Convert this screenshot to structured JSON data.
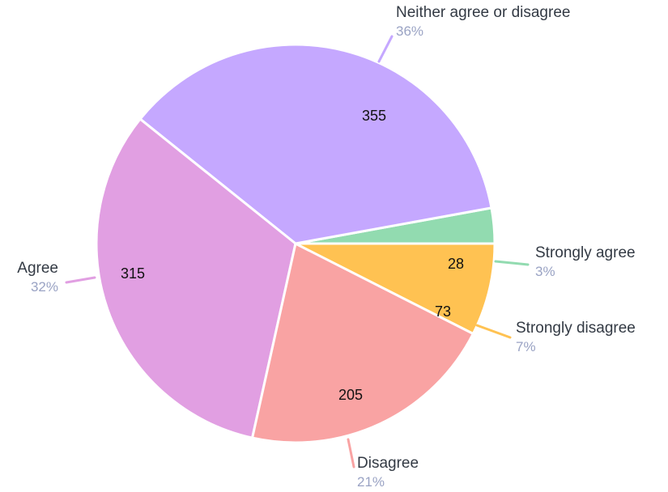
{
  "chart_data": {
    "type": "pie",
    "slices": [
      {
        "label": "Strongly agree",
        "value": 28,
        "percent": "3%",
        "color": "#92dbb0"
      },
      {
        "label": "Neither agree or disagree",
        "value": 355,
        "percent": "36%",
        "color": "#c5a8ff"
      },
      {
        "label": "Agree",
        "value": 315,
        "percent": "32%",
        "color": "#e19fe2"
      },
      {
        "label": "Disagree",
        "value": 205,
        "percent": "21%",
        "color": "#f9a3a3"
      },
      {
        "label": "Strongly disagree",
        "value": 73,
        "percent": "7%",
        "color": "#ffc252"
      }
    ]
  }
}
